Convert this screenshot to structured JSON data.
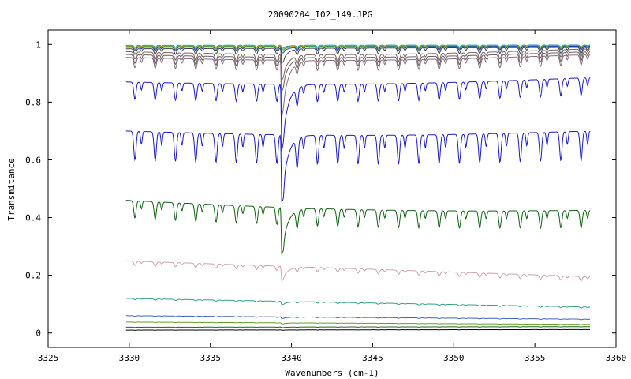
{
  "chart_data": {
    "type": "line",
    "title": "20090204_I02_149.JPG",
    "xlabel": "Wavenumbers (cm-1)",
    "ylabel": "Transmitance",
    "xlim": [
      3325,
      3360
    ],
    "ylim": [
      -0.05,
      1.05
    ],
    "xticks": [
      3325,
      3330,
      3335,
      3340,
      3345,
      3350,
      3355,
      3360
    ],
    "yticks": [
      0,
      0.2,
      0.4,
      0.6,
      0.8,
      1
    ],
    "ytick_labels": [
      "0",
      "0.2",
      "0.4",
      "0.6",
      "0.8",
      "1"
    ],
    "grid": false,
    "legend": "none",
    "x_range_data": [
      3329.8,
      3358.4
    ],
    "line_period_cm1": 1.25,
    "line_center_cm1": 3339.4,
    "series": [
      {
        "color": "#0d9aa8",
        "start": 0.997,
        "end": 0.998,
        "dip": 0.006,
        "big": 0.01
      },
      {
        "color": "#e0a020",
        "start": 0.995,
        "end": 0.997,
        "dip": 0.008,
        "big": 0.012
      },
      {
        "color": "#40a040",
        "start": 0.993,
        "end": 0.996,
        "dip": 0.01,
        "big": 0.015
      },
      {
        "color": "#2040c0",
        "start": 0.99,
        "end": 0.994,
        "dip": 0.012,
        "big": 0.02
      },
      {
        "color": "#404040",
        "start": 0.985,
        "end": 0.99,
        "dip": 0.02,
        "big": 0.05
      },
      {
        "color": "#806060",
        "start": 0.975,
        "end": 0.985,
        "dip": 0.025,
        "big": 0.09
      },
      {
        "color": "#606060",
        "start": 0.965,
        "end": 0.975,
        "dip": 0.03,
        "big": 0.12
      },
      {
        "color": "#8a6a80",
        "start": 0.955,
        "end": 0.965,
        "dip": 0.035,
        "big": 0.2
      },
      {
        "color": "#1a1ac8",
        "start": 0.87,
        "end": 0.885,
        "dip": 0.06,
        "big": 0.23
      },
      {
        "color": "#1a1ac8",
        "start": 0.7,
        "end": 0.7,
        "dip": 0.1,
        "big": 0.23
      },
      {
        "color": "#106010",
        "start": 0.46,
        "end": 0.425,
        "dip": 0.06,
        "big": 0.16
      },
      {
        "color": "#d0a0b0",
        "start": 0.25,
        "end": 0.195,
        "dip": 0.015,
        "big": 0.05
      },
      {
        "color": "#30a080",
        "start": 0.12,
        "end": 0.09,
        "dip": 0.004,
        "big": 0.012
      },
      {
        "color": "#4060c0",
        "start": 0.06,
        "end": 0.048,
        "dip": 0.002,
        "big": 0.006
      },
      {
        "color": "#60a020",
        "start": 0.038,
        "end": 0.03,
        "dip": 0.001,
        "big": 0.004
      },
      {
        "color": "#206020",
        "start": 0.02,
        "end": 0.022,
        "dip": 0.001,
        "big": 0.002
      },
      {
        "color": "#000000",
        "start": 0.01,
        "end": 0.012,
        "dip": 0.0005,
        "big": 0.001
      }
    ]
  }
}
